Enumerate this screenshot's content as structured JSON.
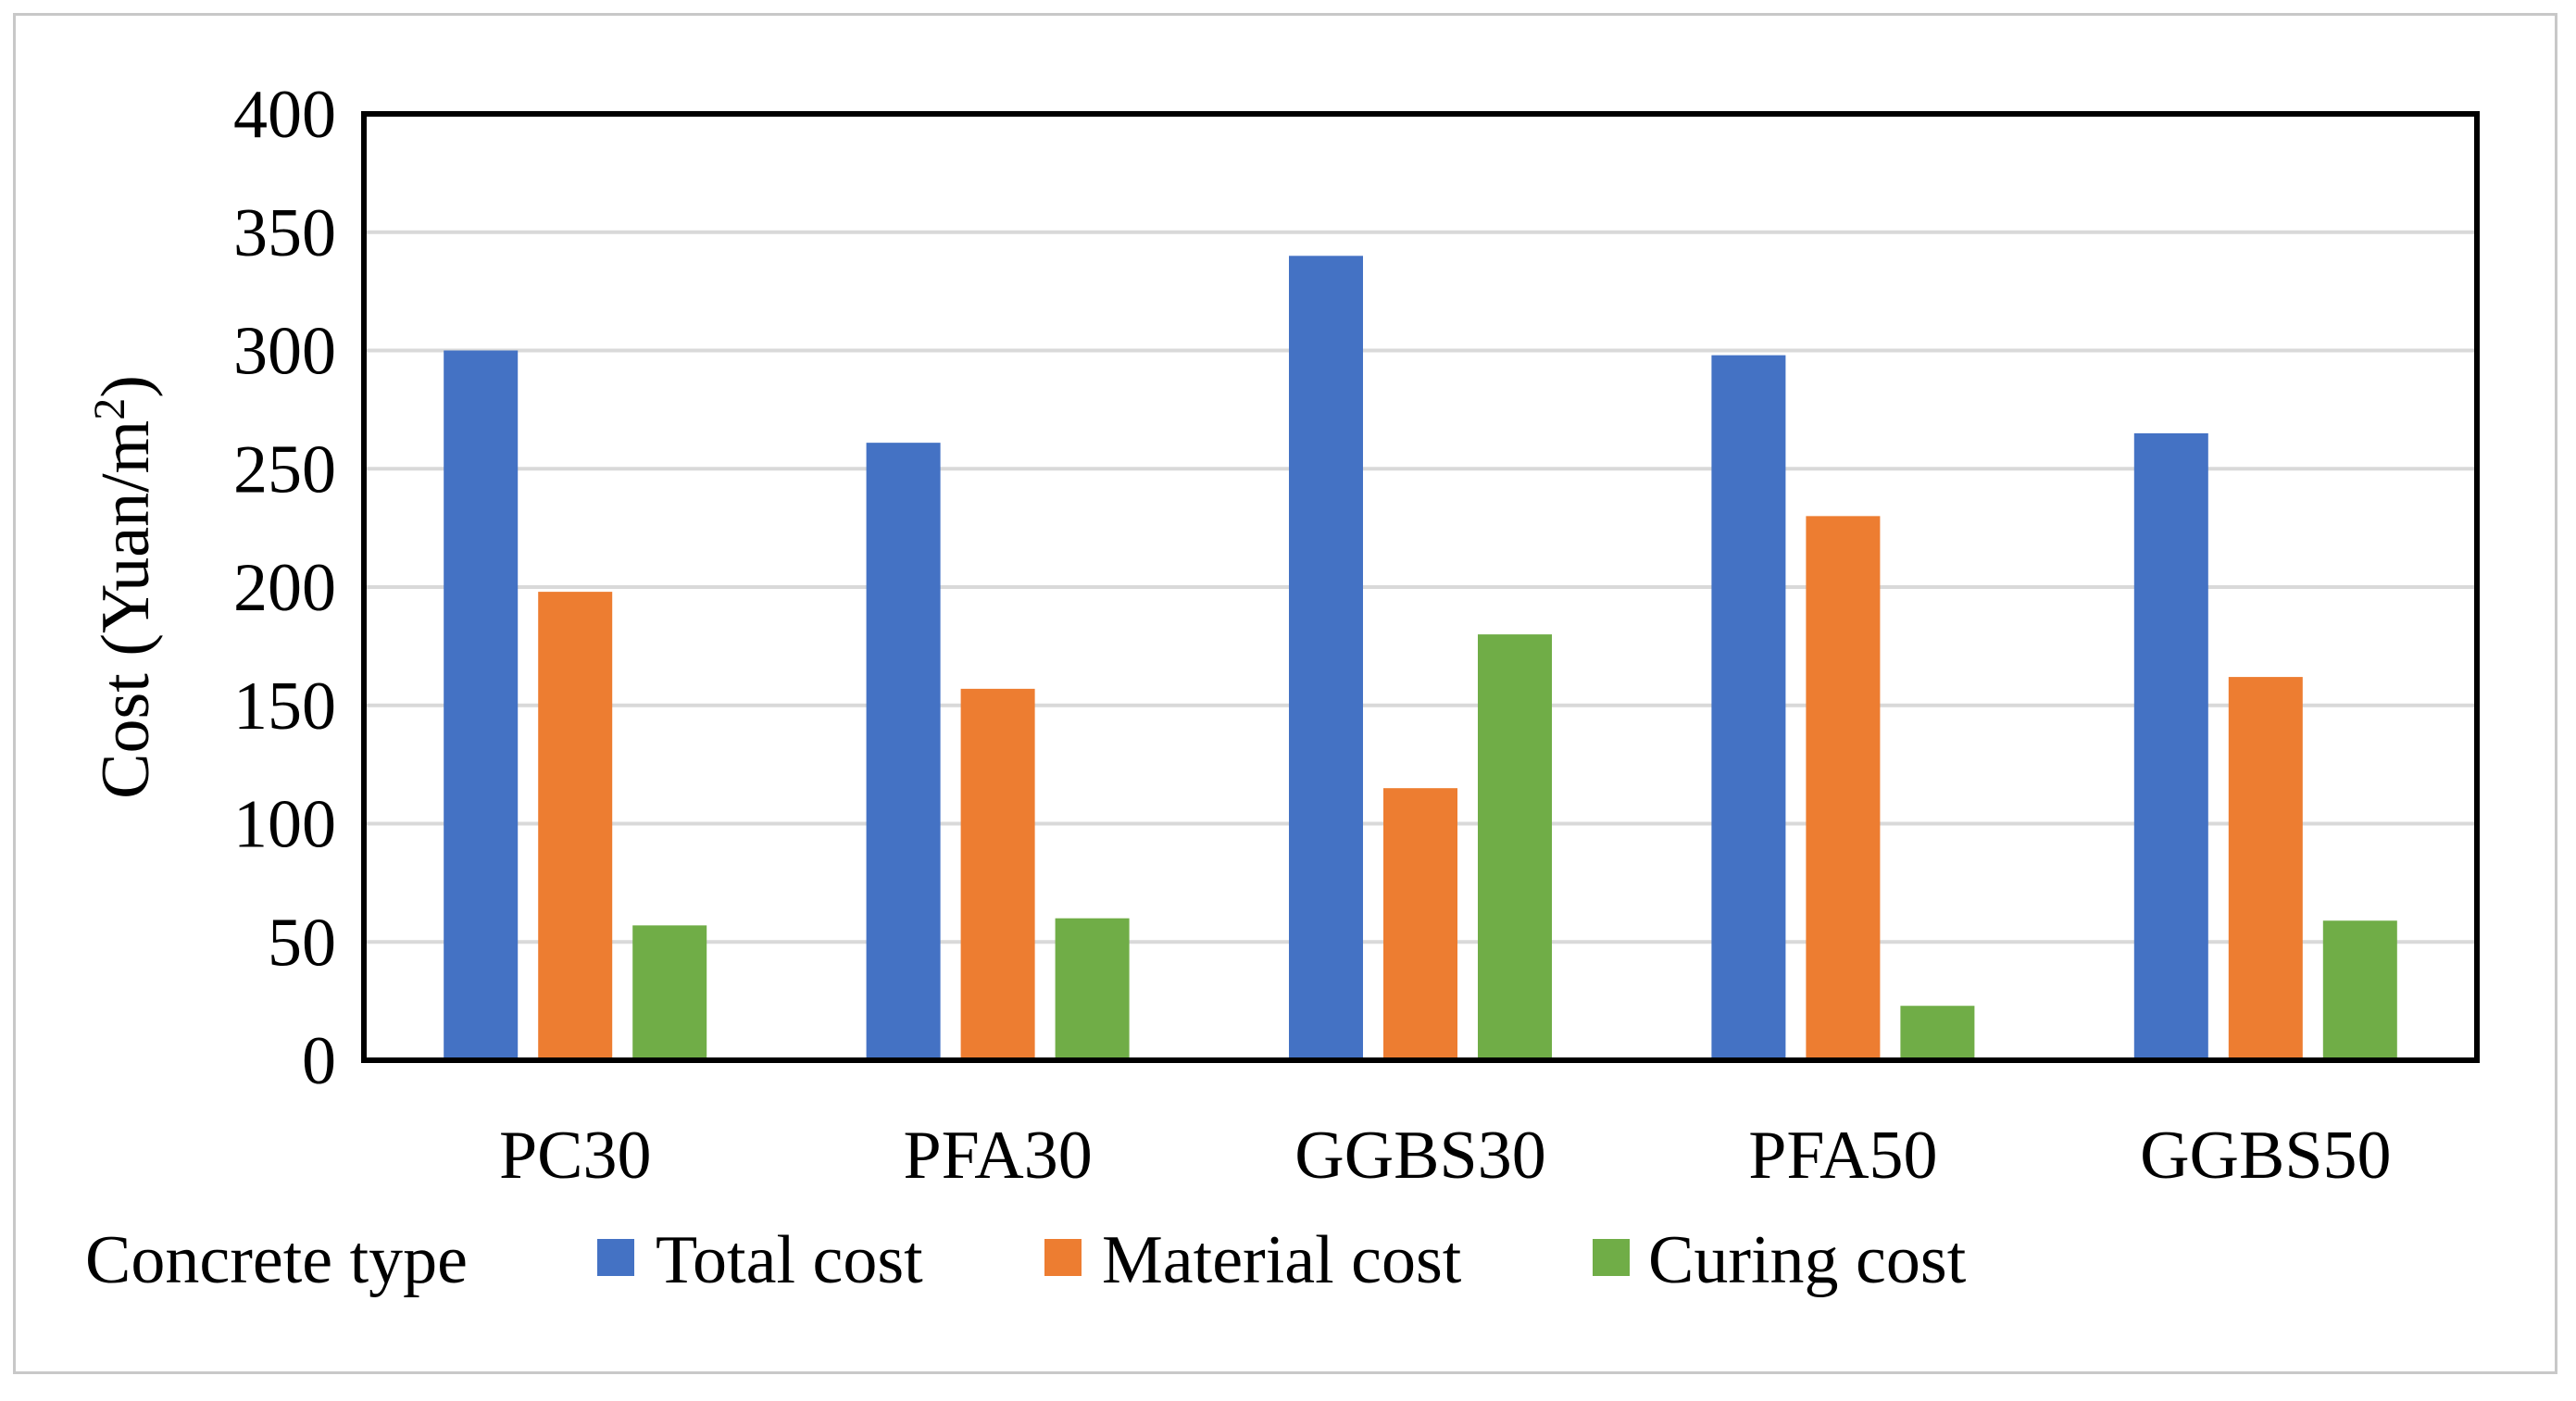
{
  "chart_data": {
    "type": "bar",
    "title": "",
    "xlabel": "Concrete type",
    "ylabel": "Cost (Yuan/m",
    "ylabel_superscript": "2",
    "ylabel_close": ")",
    "categories": [
      "PC30",
      "PFA30",
      "GGBS30",
      "PFA50",
      "GGBS50"
    ],
    "series": [
      {
        "name": "Total cost",
        "color": "#4472C4",
        "values": [
          300,
          261,
          340,
          298,
          265
        ]
      },
      {
        "name": "Material cost",
        "color": "#ED7D31",
        "values": [
          198,
          157,
          115,
          230,
          162
        ]
      },
      {
        "name": "Curing cost",
        "color": "#70AD47",
        "values": [
          57,
          60,
          180,
          23,
          59
        ]
      }
    ],
    "ylim": [
      0,
      400
    ],
    "yticks": [
      0,
      50,
      100,
      150,
      200,
      250,
      300,
      350,
      400
    ],
    "grid": true,
    "legend_position": "bottom"
  }
}
